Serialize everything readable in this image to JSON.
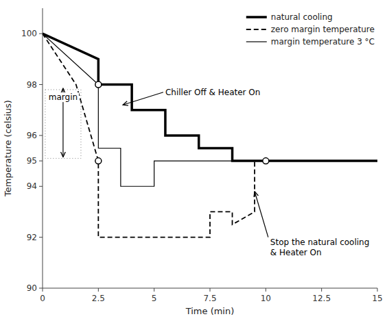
{
  "chart_data": {
    "type": "line",
    "xlabel": "Time (min)",
    "ylabel": "Temperature (celsius)",
    "xlim": [
      0,
      15
    ],
    "ylim": [
      90,
      101
    ],
    "xticks": [
      0,
      2.5,
      5,
      7.5,
      10,
      12.5,
      15
    ],
    "yticks": [
      90,
      92,
      94,
      95,
      96,
      98,
      100
    ],
    "grid": false,
    "legend": "upper right",
    "series": [
      {
        "name": "natural cooling",
        "color": "#000000",
        "line_style": "solid",
        "x": [
          0,
          2.5,
          2.5,
          4.0,
          4.0,
          5.5,
          5.5,
          7.0,
          7.0,
          8.5,
          8.5,
          10,
          10,
          15
        ],
        "values": [
          100,
          99,
          98,
          98,
          97,
          97,
          96,
          96,
          95.5,
          95.5,
          95,
          95,
          95,
          95
        ]
      },
      {
        "name": "zero margin temperature",
        "color": "#000000",
        "line_style": "dashed",
        "x": [
          0,
          1.5,
          1.5,
          2.5,
          2.5,
          4.5,
          4.5,
          7.5,
          7.5,
          8.5,
          8.5,
          9.5,
          9.5,
          12.5,
          12.5,
          15
        ],
        "values": [
          100,
          98,
          98,
          95,
          92,
          92,
          92,
          92,
          93,
          93,
          92.5,
          93,
          95,
          95,
          95,
          95
        ]
      },
      {
        "name": "margin temperature 3 °C",
        "color": "#000000",
        "line_style": "solid",
        "x": [
          0,
          2.5,
          2.5,
          3.5,
          3.5,
          5.0,
          5.0,
          7.5,
          7.5,
          10,
          10,
          15
        ],
        "values": [
          100,
          98,
          95.5,
          95.5,
          94,
          94,
          95,
          95,
          95,
          95,
          95,
          95
        ]
      },
      {
        "type": "scatter",
        "marker": "circle",
        "x": [
          2.5,
          2.5,
          10.0
        ],
        "values": [
          98,
          95,
          95
        ]
      }
    ],
    "annotations": [
      {
        "text": "margin",
        "x": 0.92,
        "y": 97.5,
        "box": {
          "x": 0.12,
          "y": 95.1,
          "width": 1.6,
          "height": 2.7
        },
        "arrow": {
          "x": 0.92,
          "y_top": 97.85,
          "y_bottom": 95.15
        }
      },
      {
        "text": "Chiller Off & Heater On",
        "x": 3.6,
        "y": 97.2,
        "text_x": 5.5,
        "text_y": 97.7
      },
      {
        "text": "Stop the natural cooling\n& Heater On",
        "x": 9.5,
        "y": 93.8,
        "text_x": 10.2,
        "text_y": 92.0
      }
    ]
  }
}
